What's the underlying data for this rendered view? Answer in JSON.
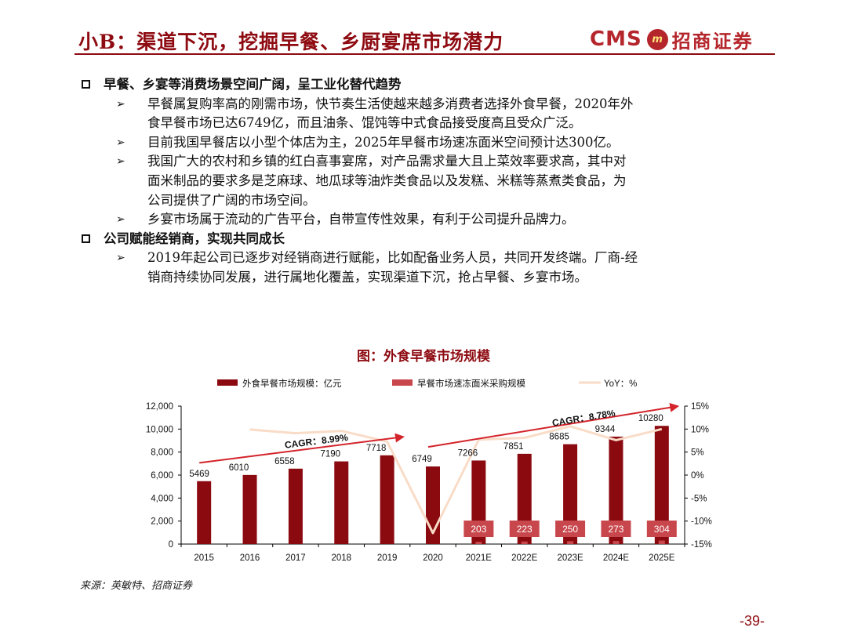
{
  "header": {
    "title": "小B：渠道下沉，挖掘早餐、乡厨宴席市场潜力",
    "logo_text": "CMS",
    "logo_mark": "m",
    "logo_name": "招商证券"
  },
  "sections": [
    {
      "heading": "早餐、乡宴等消费场景空间广阔，呈工业化替代趋势",
      "bullets": [
        [
          "早餐属复购率高的刚需市场，快节奏生活使越来越多消费者选择外食早餐，2020年外",
          "食早餐市场已达6749亿，而且油条、馄饨等中式食品接受度高且受众广泛。"
        ],
        [
          "目前我国早餐店以小型个体店为主，2025年早餐市场速冻面米空间预计达300亿。"
        ],
        [
          "我国广大的农村和乡镇的红白喜事宴席，对产品需求量大且上菜效率要求高，其中对",
          "面米制品的要求多是芝麻球、地瓜球等油炸类食品以及发糕、米糕等蒸煮类食品，为",
          "公司提供了广阔的市场空间。"
        ],
        [
          "乡宴市场属于流动的广告平台，自带宣传性效果，有利于公司提升品牌力。"
        ]
      ]
    },
    {
      "heading": "公司赋能经销商，实现共同成长",
      "bullets": [
        [
          "2019年起公司已逐步对经销商进行赋能，比如配备业务人员，共同开发终端。厂商-经",
          "销商持续协同发展，进行属地化覆盖，实现渠道下沉，抢占早餐、乡宴市场。"
        ]
      ]
    }
  ],
  "chart_title": "图：外食早餐市场规模",
  "chart_data": {
    "type": "bar",
    "categories": [
      "2015",
      "2016",
      "2017",
      "2018",
      "2019",
      "2020",
      "2021E",
      "2022E",
      "2023E",
      "2024E",
      "2025E"
    ],
    "series": [
      {
        "name": "外食早餐市场规模：亿元",
        "type": "bar",
        "axis": "left",
        "color": "#8b0a10",
        "values": [
          5469,
          6010,
          6558,
          7190,
          7718,
          6749,
          7266,
          7851,
          8685,
          9344,
          10280
        ]
      },
      {
        "name": "早餐市场速冻面米采购规模",
        "type": "bar",
        "axis": "left",
        "color": "#c8474c",
        "values": [
          null,
          null,
          null,
          null,
          null,
          null,
          203,
          223,
          250,
          273,
          304
        ]
      },
      {
        "name": "YoY：%",
        "type": "line",
        "axis": "right",
        "color": "#f9dcc8",
        "values": [
          null,
          9.9,
          9.1,
          9.6,
          7.3,
          -12.6,
          7.7,
          8.1,
          10.6,
          7.6,
          10.0
        ]
      }
    ],
    "yleft": {
      "min": 0,
      "max": 12000,
      "ticks": [
        "0",
        "2,000",
        "4,000",
        "6,000",
        "8,000",
        "10,000",
        "12,000"
      ]
    },
    "yright": {
      "min": -15,
      "max": 15,
      "ticks": [
        "-15%",
        "-10%",
        "-5%",
        "0%",
        "5%",
        "10%",
        "15%"
      ]
    },
    "annotations": [
      {
        "text": "CAGR：8.99%",
        "from": "2015",
        "to": "2019"
      },
      {
        "text": "CAGR：8.78%",
        "from": "2020",
        "to": "2025E"
      }
    ],
    "legend": "top",
    "grid": false
  },
  "source": "来源：英敏特、招商证券",
  "page_number": "-39-"
}
